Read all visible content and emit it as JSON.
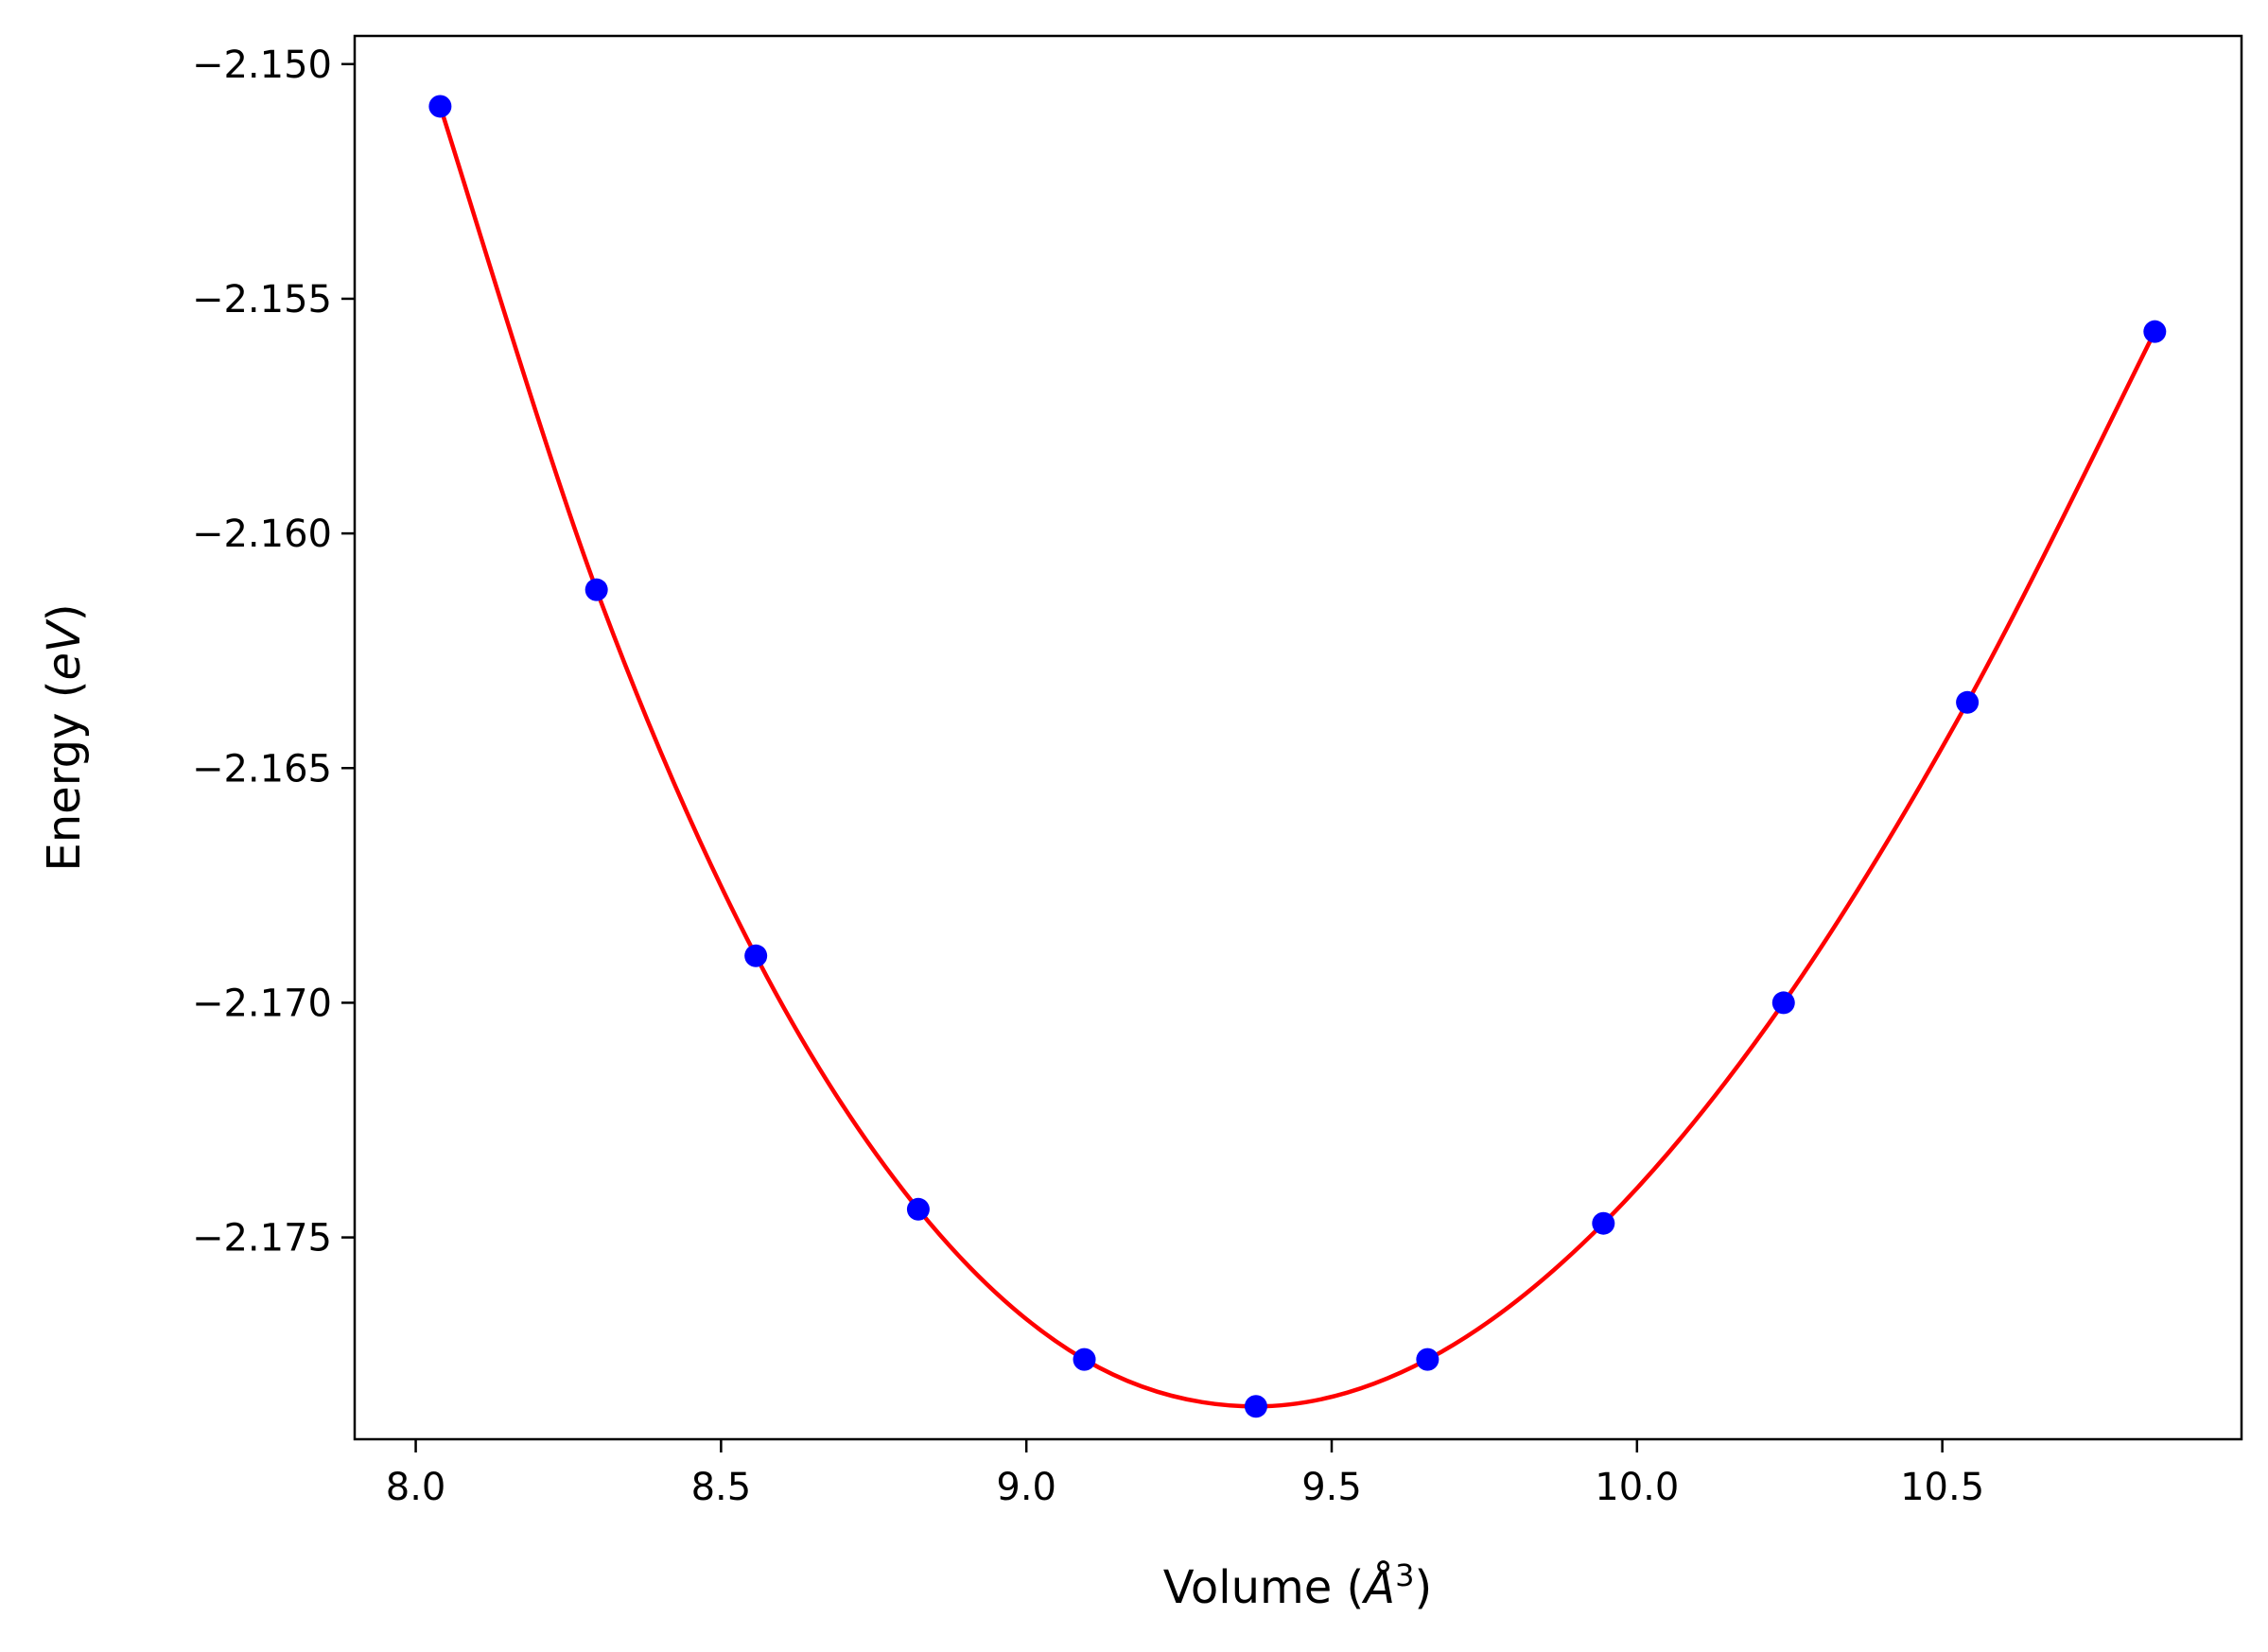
{
  "chart_data": {
    "type": "scatter",
    "title": "",
    "xlabel": {
      "prefix": "Volume (",
      "symbol": "Å",
      "sup": "3",
      "suffix": ")"
    },
    "ylabel": {
      "prefix": "Energy (",
      "symbol": "eV",
      "suffix": ")"
    },
    "xlim": [
      7.9,
      10.99
    ],
    "ylim": [
      -2.1793,
      -2.1494
    ],
    "xticks": [
      8.0,
      8.5,
      9.0,
      9.5,
      10.0,
      10.5
    ],
    "xtick_labels": [
      "8.0",
      "8.5",
      "9.0",
      "9.5",
      "10.0",
      "10.5"
    ],
    "yticks": [
      -2.15,
      -2.155,
      -2.16,
      -2.165,
      -2.17,
      -2.175
    ],
    "ytick_labels": [
      "−2.150",
      "−2.155",
      "−2.160",
      "−2.165",
      "−2.170",
      "−2.175"
    ],
    "grid": false,
    "series": [
      {
        "name": "data",
        "style": "markers",
        "color": "#0000ff",
        "x": [
          8.04,
          8.296,
          8.557,
          8.823,
          9.095,
          9.376,
          9.657,
          9.945,
          10.24,
          10.541,
          10.848
        ],
        "y": [
          -2.1509,
          -2.1612,
          -2.169,
          -2.1744,
          -2.1776,
          -2.1786,
          -2.1776,
          -2.1747,
          -2.17,
          -2.1636,
          -2.1557
        ]
      },
      {
        "name": "fit",
        "style": "line",
        "color": "#ff0000",
        "x": [
          8.04,
          8.296,
          8.557,
          8.823,
          9.095,
          9.376,
          9.657,
          9.945,
          10.24,
          10.541,
          10.848
        ],
        "y": [
          -2.1509,
          -2.1612,
          -2.169,
          -2.1744,
          -2.1776,
          -2.1786,
          -2.1776,
          -2.1747,
          -2.17,
          -2.1636,
          -2.1557
        ]
      }
    ]
  }
}
